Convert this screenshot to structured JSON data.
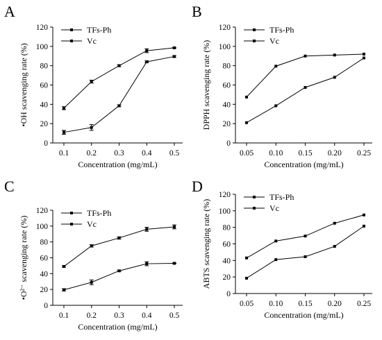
{
  "chart_data": [
    {
      "panel": "A",
      "type": "line",
      "xlabel": "Concentration (mg/mL)",
      "ylabel": "•OH scavenging rate (%)",
      "x": [
        0.1,
        0.2,
        0.3,
        0.4,
        0.5
      ],
      "xticks": [
        "0.1",
        "0.2",
        "0.3",
        "0.4",
        "0.5"
      ],
      "ylim": [
        0,
        120
      ],
      "yticks": [
        "0",
        "20",
        "40",
        "60",
        "80",
        "100",
        "120"
      ],
      "legend_position": "top-left",
      "series": [
        {
          "name": "TFs-Ph",
          "values": [
            11,
            16,
            38.5,
            84,
            89.5
          ],
          "errors": [
            2,
            3,
            1,
            1,
            1
          ]
        },
        {
          "name": "Vc",
          "values": [
            36,
            63.5,
            80,
            95.5,
            98.5
          ],
          "errors": [
            1.5,
            1.5,
            1,
            2,
            0.5
          ]
        }
      ]
    },
    {
      "panel": "B",
      "type": "line",
      "xlabel": "Concentration (mg/mL)",
      "ylabel": "DPPH scavenging rate (%)",
      "x": [
        0.05,
        0.1,
        0.15,
        0.2,
        0.25
      ],
      "xticks": [
        "0.05",
        "0.10",
        "0.15",
        "0.20",
        "0.25"
      ],
      "ylim": [
        0,
        120
      ],
      "yticks": [
        "0",
        "20",
        "40",
        "60",
        "80",
        "100",
        "120"
      ],
      "legend_position": "top-left",
      "series": [
        {
          "name": "TFs-Ph",
          "values": [
            21,
            38.5,
            57.5,
            68,
            88
          ],
          "errors": [
            0,
            0,
            0,
            0,
            0
          ]
        },
        {
          "name": "Vc",
          "values": [
            47.5,
            79.5,
            90,
            91,
            92
          ],
          "errors": [
            0,
            0,
            0,
            0,
            0
          ]
        }
      ]
    },
    {
      "panel": "C",
      "type": "line",
      "xlabel": "Concentration (mg/mL)",
      "ylabel": "•O²⁻ scavenging rate (%)",
      "x": [
        0.1,
        0.2,
        0.3,
        0.4,
        0.5
      ],
      "xticks": [
        "0.1",
        "0.2",
        "0.3",
        "0.4",
        "0.5"
      ],
      "ylim": [
        0,
        120
      ],
      "yticks": [
        "0",
        "20",
        "40",
        "60",
        "80",
        "100",
        "120"
      ],
      "legend_position": "top-left",
      "series": [
        {
          "name": "TFs-Ph",
          "values": [
            19.5,
            29,
            43.5,
            52.5,
            53
          ],
          "errors": [
            1.5,
            3,
            1,
            2.5,
            0.5
          ]
        },
        {
          "name": "Vc",
          "values": [
            49,
            75,
            85,
            96,
            99
          ],
          "errors": [
            1,
            1.5,
            1.5,
            2.5,
            2.5
          ]
        }
      ]
    },
    {
      "panel": "D",
      "type": "line",
      "xlabel": "Concentration (mg/mL)",
      "ylabel": "ABTS scavenging rate (%)",
      "x": [
        0.05,
        0.1,
        0.15,
        0.2,
        0.25
      ],
      "xticks": [
        "0.05",
        "0.10",
        "0.15",
        "0.20",
        "0.25"
      ],
      "ylim": [
        0,
        120
      ],
      "yticks": [
        "0",
        "20",
        "40",
        "60",
        "80",
        "100",
        "120"
      ],
      "legend_position": "top-left",
      "series": [
        {
          "name": "TFs-Ph",
          "values": [
            18.5,
            41,
            44.5,
            57,
            81.5
          ],
          "errors": [
            0,
            0,
            0,
            0,
            0
          ]
        },
        {
          "name": "Vc",
          "values": [
            43,
            63.5,
            69.5,
            85,
            95
          ],
          "errors": [
            0,
            0,
            0,
            0,
            0
          ]
        }
      ]
    }
  ]
}
